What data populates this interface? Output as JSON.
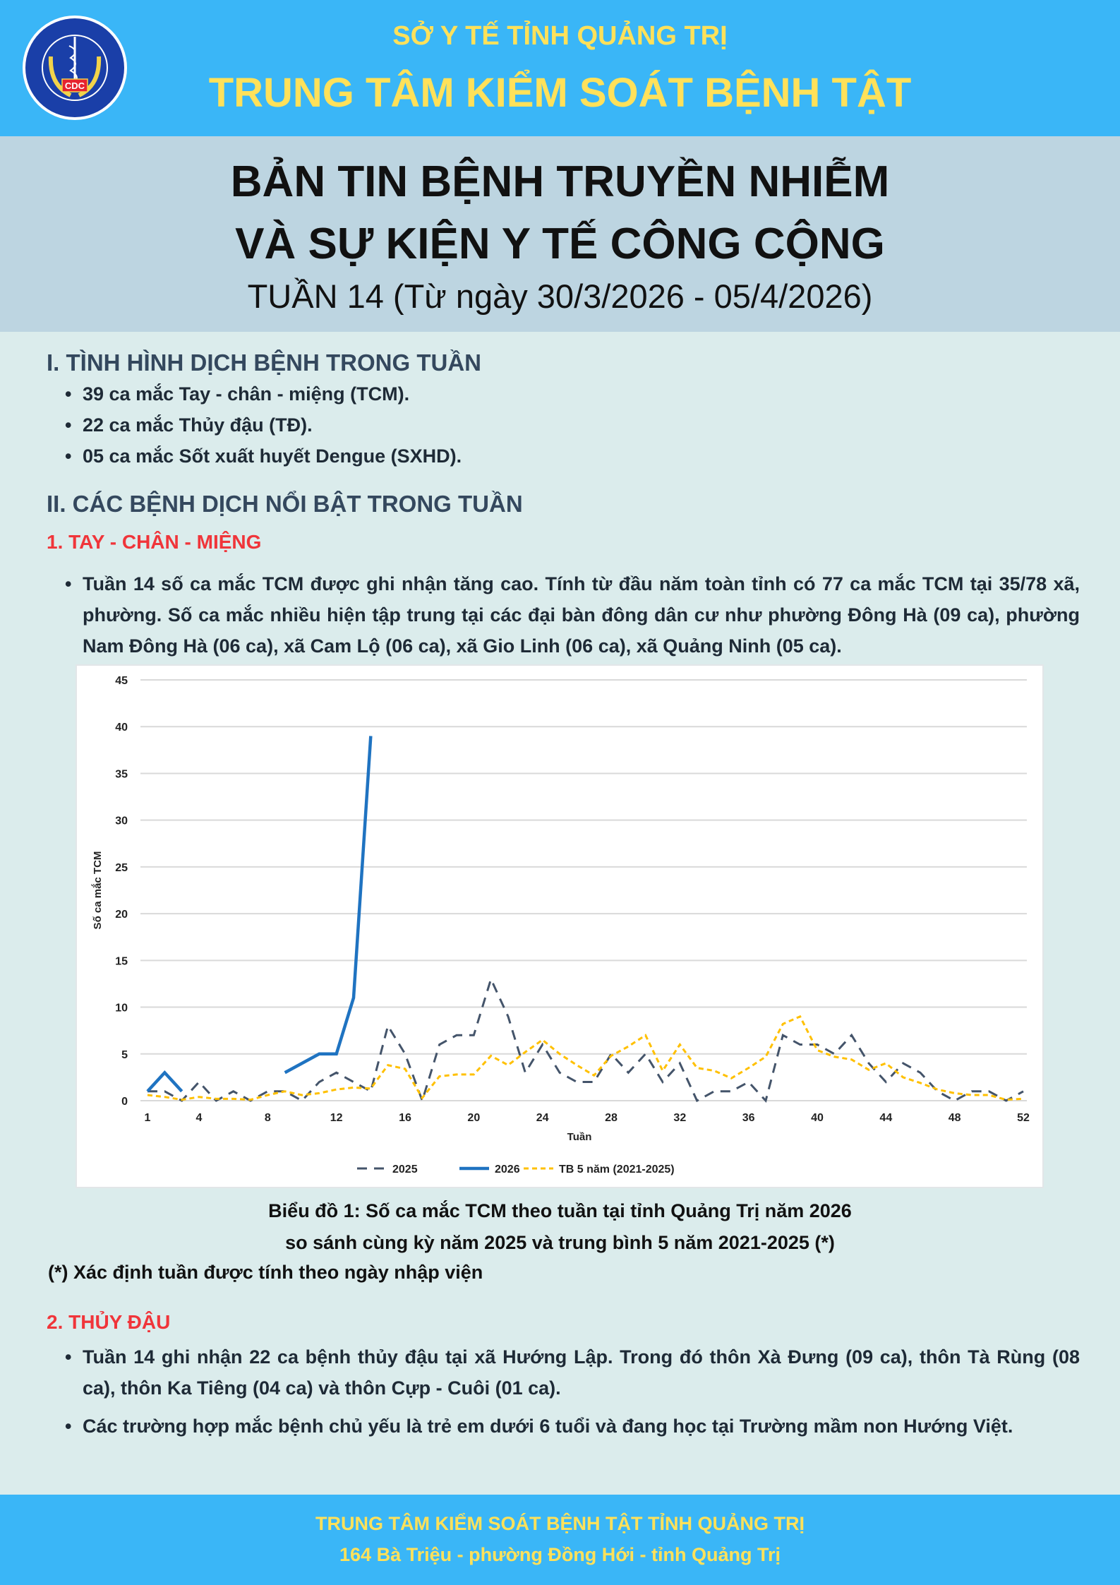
{
  "header": {
    "org_parent": "SỞ Y TẾ TỈNH QUẢNG TRỊ",
    "org_name": "TRUNG TÂM KIỂM SOÁT BỆNH TẬT",
    "logo_text": "TRUNG TÂM KIỂM SOÁT BỆNH TẬT · TỈNH QUẢNG TRỊ · CDC"
  },
  "title": {
    "line1": "BẢN TIN BỆNH TRUYỀN NHIỄM",
    "line2": "VÀ SỰ KIỆN Y TẾ CÔNG CỘNG",
    "line3": "TUẦN 14 (Từ ngày 30/3/2026 - 05/4/2026)"
  },
  "section1": {
    "heading": "I. TÌNH HÌNH DỊCH BỆNH TRONG TUẦN",
    "bullets": [
      "39 ca mắc Tay - chân - miệng (TCM).",
      "22 ca mắc Thủy đậu (TĐ).",
      "05 ca mắc Sốt xuất huyết Dengue (SXHD)."
    ]
  },
  "section2": {
    "heading": "II. CÁC BỆNH DỊCH NỔI BẬT TRONG TUẦN",
    "sub1": {
      "heading": "1. TAY - CHÂN - MIỆNG",
      "bullets": [
        "Tuần 14 số ca mắc TCM được ghi nhận tăng cao. Tính từ đầu năm toàn tỉnh có 77 ca mắc TCM tại 35/78 xã, phường. Số ca mắc nhiều hiện tập trung tại các đại bàn đông dân cư như phường Đông Hà (09 ca), phường Nam Đông Hà (06 ca), xã Cam Lộ (06 ca), xã Gio Linh (06 ca), xã Quảng Ninh (05 ca)."
      ]
    },
    "caption_line1": "Biểu đồ 1: Số ca mắc TCM theo tuần tại tỉnh Quảng Trị năm 2026",
    "caption_line2": "so sánh cùng kỳ năm 2025 và trung bình 5 năm 2021-2025 (*)",
    "footnote": "(*) Xác định tuần được tính theo ngày nhập viện",
    "sub2": {
      "heading": "2. THỦY ĐẬU",
      "bullets": [
        "Tuần 14 ghi nhận 22 ca bệnh thủy đậu tại xã Hướng Lập. Trong đó thôn Xà Đưng (09 ca), thôn Tà Rùng (08 ca), thôn Ka Tiêng (04 ca) và thôn Cựp - Cuôi (01 ca).",
        "Các trường hợp mắc bệnh chủ yếu là trẻ em dưới 6 tuổi và đang học tại Trường mầm non Hướng Việt."
      ]
    }
  },
  "footer": {
    "line1": "TRUNG TÂM KIỂM SOÁT BỆNH TẬT TỈNH QUẢNG TRỊ",
    "line2": "164 Bà Triệu - phường Đồng Hới - tỉnh Quảng Trị"
  },
  "chart_data": {
    "type": "line",
    "xlabel": "Tuần",
    "ylabel": "Số ca mắc TCM",
    "xlim": [
      1,
      52
    ],
    "ylim": [
      0,
      45
    ],
    "xticks": [
      1,
      4,
      8,
      12,
      16,
      20,
      24,
      28,
      32,
      36,
      40,
      44,
      48,
      52
    ],
    "yticks": [
      0,
      5,
      10,
      15,
      20,
      25,
      30,
      35,
      40,
      45
    ],
    "grid": "horizontal",
    "legend": "bottom",
    "series": [
      {
        "name": "2025",
        "color": "#44546a",
        "style": "dashed",
        "values": [
          1,
          1,
          0,
          2,
          0,
          1,
          0,
          1,
          1,
          0,
          2,
          3,
          2,
          1,
          8,
          5,
          0,
          6,
          7,
          7,
          13,
          9,
          3,
          6,
          3,
          2,
          2,
          5,
          3,
          5,
          2,
          4,
          0,
          1,
          1,
          2,
          0,
          7,
          6,
          6,
          5,
          7,
          4,
          2,
          4,
          3,
          1,
          0,
          1,
          1,
          0,
          1
        ]
      },
      {
        "name": "2026",
        "color": "#1f73c1",
        "style": "solid",
        "values": [
          1,
          3,
          1,
          null,
          null,
          null,
          null,
          null,
          3,
          4,
          5,
          5,
          11,
          39
        ]
      },
      {
        "name": "TB 5 năm (2021-2025)",
        "color": "#ffc000",
        "style": "dotted",
        "values": [
          0.6,
          0.4,
          0.1,
          0.4,
          0.2,
          0.2,
          0.1,
          0.6,
          1.0,
          0.6,
          0.8,
          1.2,
          1.4,
          1.3,
          3.8,
          3.4,
          0.3,
          2.6,
          2.8,
          2.8,
          4.8,
          3.8,
          5.2,
          6.5,
          5.0,
          3.8,
          2.7,
          4.8,
          5.8,
          7.0,
          3.2,
          6.0,
          3.5,
          3.2,
          2.4,
          3.5,
          4.7,
          8.2,
          9.0,
          5.4,
          4.7,
          4.4,
          3.3,
          4.0,
          2.5,
          1.9,
          1.2,
          0.8,
          0.6,
          0.6,
          0.1,
          0.2
        ]
      }
    ]
  }
}
